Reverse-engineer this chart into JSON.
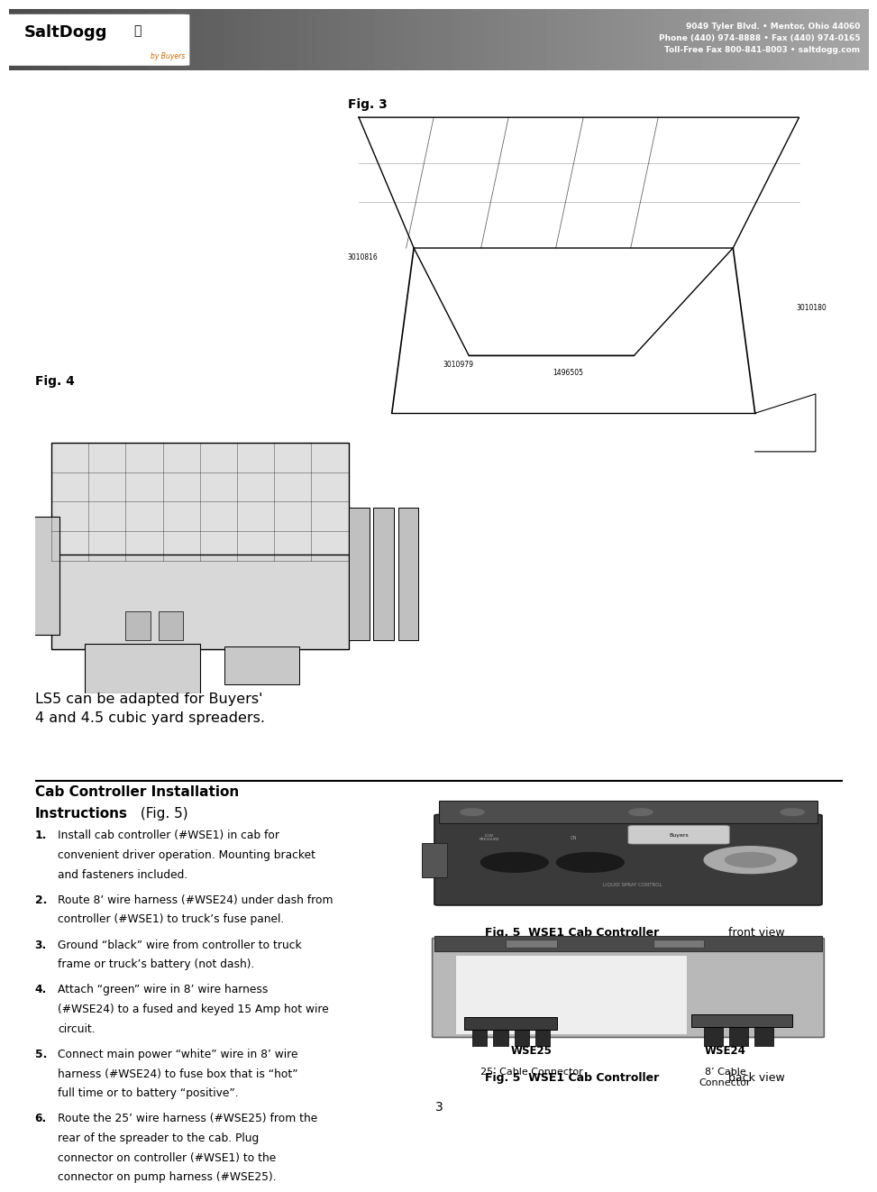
{
  "bg_color": "#ffffff",
  "header_company": "9049 Tyler Blvd. • Mentor, Ohio 44060\nPhone (440) 974-8888 • Fax (440) 974-0165\nToll-Free Fax 800-841-8003 • saltdogg.com",
  "fig3_label": "Fig. 3",
  "fig4_label": "Fig. 4",
  "fig4_caption": "LS5 can be adapted for Buyers'\n4 and 4.5 cubic yard spreaders.",
  "section_title_line1": "Cab Controller Installation",
  "section_title_line2_bold": "Instructions",
  "section_title_line2_normal": " (Fig. 5)",
  "instructions": [
    {
      "num": "1.",
      "text": "Install cab controller (#WSE1) in cab for convenient driver operation. Mounting bracket and fasteners included."
    },
    {
      "num": "2.",
      "text": "Route 8’ wire harness (#WSE24) under dash from controller (#WSE1) to truck’s fuse panel."
    },
    {
      "num": "3.",
      "text": "Ground “black” wire from controller to truck frame or truck’s battery (not dash)."
    },
    {
      "num": "4.",
      "text": "Attach “green” wire in 8’ wire harness (#WSE24) to a fused and keyed 15 Amp hot wire circuit."
    },
    {
      "num": "5.",
      "text": "Connect main power “white” wire in 8’ wire harness (#WSE24) to fuse box that is “hot” full time or to battery “positive”."
    },
    {
      "num": "6.",
      "text": "Route the 25’ wire harness (#WSE25) from the rear of the spreader to the cab. Plug connector on controller (#WSE1) to the connector on pump harness (#WSE25)."
    }
  ],
  "fig5_front_bold": "Fig. 5  WSE1 Cab Controller",
  "fig5_front_normal": " front view",
  "fig5_back_bold": "Fig. 5  WSE1 Cab Controller",
  "fig5_back_normal": " back view",
  "wse25_label": "WSE25",
  "wse25_sub": "25’ Cable Connector",
  "wse24_label": "WSE24",
  "wse24_sub": "8’ Cable\nConnector",
  "page_num": "3"
}
